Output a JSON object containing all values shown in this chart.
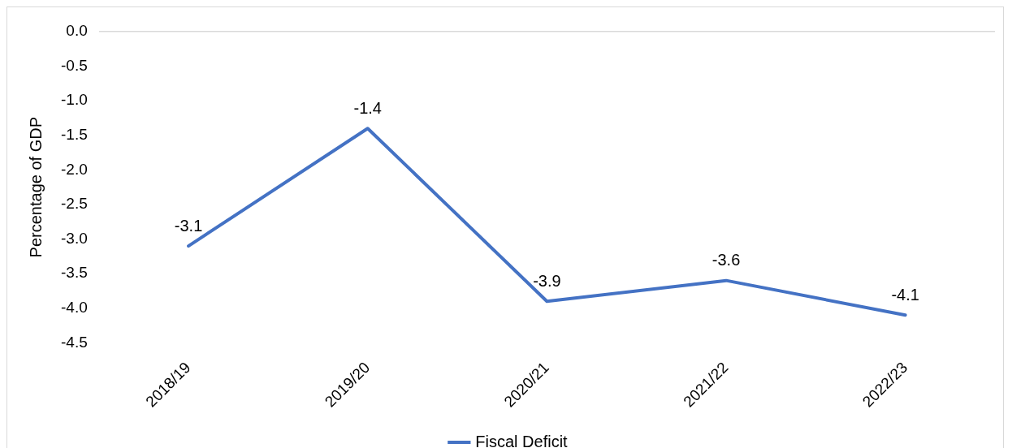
{
  "chart_data": {
    "type": "line",
    "ylabel": "Percentage of GDP",
    "categories": [
      "2018/19",
      "2019/20",
      "2020/21",
      "2021/22",
      "2022/23"
    ],
    "series": [
      {
        "name": "Fiscal Deficit",
        "color": "#4472c4",
        "values": [
          -3.1,
          -1.4,
          -3.9,
          -3.6,
          -4.1
        ]
      }
    ],
    "ylim": [
      -4.5,
      0
    ],
    "yticks": [
      {
        "value": 0,
        "label": "0.0"
      },
      {
        "value": -0.5,
        "label": "-0.5"
      },
      {
        "value": -1,
        "label": "-1.0"
      },
      {
        "value": -1.5,
        "label": "-1.5"
      },
      {
        "value": -2,
        "label": "-2.0"
      },
      {
        "value": -2.5,
        "label": "-2.5"
      },
      {
        "value": -3,
        "label": "-3.0"
      },
      {
        "value": -3.5,
        "label": "-3.5"
      },
      {
        "value": -4,
        "label": "-4.0"
      },
      {
        "value": -4.5,
        "label": "-4.5"
      }
    ],
    "data_labels": true,
    "legend": "bottom",
    "marker": "none",
    "line_style": "solid",
    "grid": false
  }
}
